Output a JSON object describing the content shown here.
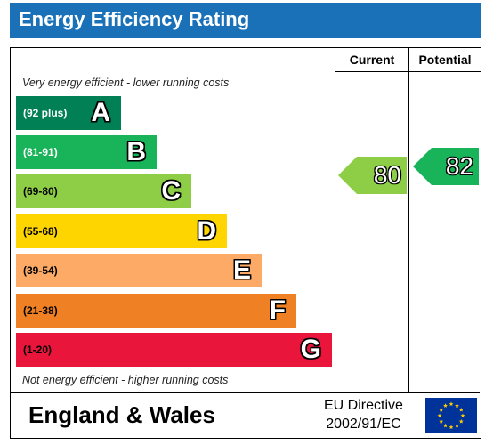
{
  "title": "Energy Efficiency Rating",
  "columns": {
    "current": "Current",
    "potential": "Potential"
  },
  "notes": {
    "top": "Very energy efficient - lower running costs",
    "bottom": "Not energy efficient - higher running costs"
  },
  "bands": [
    {
      "range": "(92 plus)",
      "letter": "A",
      "color": "#008054",
      "text_color": "#ffffff"
    },
    {
      "range": "(81-91)",
      "letter": "B",
      "color": "#19b459",
      "text_color": "#ffffff"
    },
    {
      "range": "(69-80)",
      "letter": "C",
      "color": "#8dce46",
      "text_color": "#000000"
    },
    {
      "range": "(55-68)",
      "letter": "D",
      "color": "#ffd500",
      "text_color": "#000000"
    },
    {
      "range": "(39-54)",
      "letter": "E",
      "color": "#fcaa65",
      "text_color": "#000000"
    },
    {
      "range": "(21-38)",
      "letter": "F",
      "color": "#ef8023",
      "text_color": "#000000"
    },
    {
      "range": "(1-20)",
      "letter": "G",
      "color": "#e9153b",
      "text_color": "#000000"
    }
  ],
  "ratings": {
    "current": {
      "value": "80",
      "band": "C",
      "color": "#8dce46"
    },
    "potential": {
      "value": "82",
      "band": "B",
      "color": "#19b459"
    }
  },
  "footer": {
    "region": "England & Wales",
    "directive_line1": "EU Directive",
    "directive_line2": "2002/91/EC",
    "flag": "eu-flag-icon"
  }
}
